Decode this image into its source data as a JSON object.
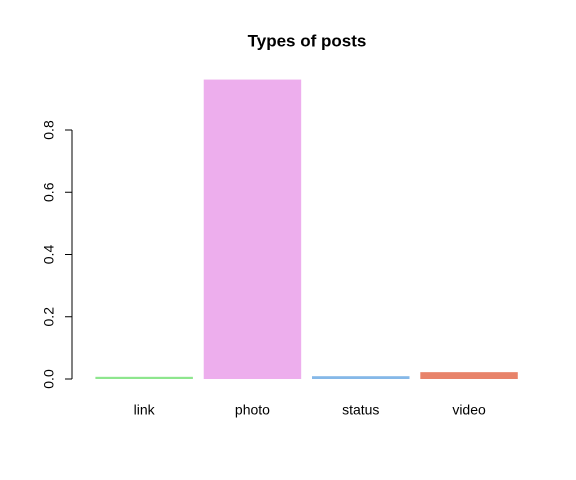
{
  "chart_data": {
    "type": "bar",
    "title": "Types of posts",
    "categories": [
      "link",
      "photo",
      "status",
      "video"
    ],
    "values": [
      0.007,
      0.962,
      0.009,
      0.022
    ],
    "colors": [
      "#8ee68e",
      "#edaeed",
      "#85b8e8",
      "#e8836a"
    ],
    "ylim": [
      0,
      1
    ],
    "yticks": [
      {
        "value": 0,
        "label": "0.0"
      },
      0.2,
      0.4,
      0.6,
      0.8
    ]
  }
}
